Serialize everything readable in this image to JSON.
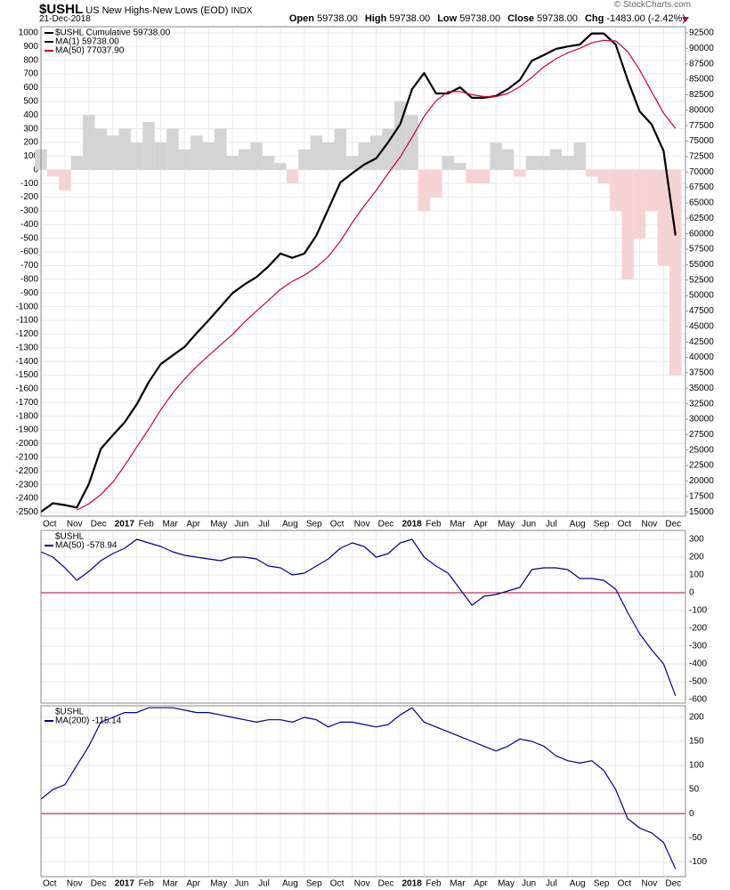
{
  "header": {
    "symbol": "$USHL",
    "name": "US New Highs-New Lows (EOD)",
    "exchange": "INDX",
    "date": "21-Dec-2018",
    "source": "© StockCharts.com",
    "quote": [
      {
        "label": "Open",
        "value": "59738.00"
      },
      {
        "label": "High",
        "value": "59738.00"
      },
      {
        "label": "Low",
        "value": "59738.00"
      },
      {
        "label": "Close",
        "value": "59738.00"
      },
      {
        "label": "Chg",
        "value": "-1483.00 (-2.42%)"
      }
    ]
  },
  "chart_data": [
    {
      "type": "line",
      "label": "$USHL Cumulative 59738.00",
      "label_color": "#000000",
      "categories": [
        "Oct",
        null,
        "Nov",
        null,
        "Dec",
        null,
        "2017",
        null,
        "Feb",
        null,
        "Mar",
        null,
        "Apr",
        null,
        "May",
        null,
        "Jun",
        null,
        "Jul",
        null,
        "Aug",
        null,
        "Sep",
        null,
        "Oct",
        null,
        "Nov",
        null,
        "Dec",
        null,
        "2018",
        null,
        "Feb",
        null,
        "Mar",
        null,
        "Apr",
        null,
        "May",
        null,
        "Jun",
        null,
        "Jul",
        null,
        "Aug",
        null,
        "Sep",
        null,
        "Oct",
        null,
        "Nov",
        null,
        "Dec",
        null
      ],
      "area_values": [
        150,
        -50,
        -150,
        100,
        400,
        300,
        250,
        300,
        200,
        350,
        200,
        300,
        150,
        250,
        200,
        300,
        100,
        150,
        200,
        100,
        50,
        -100,
        150,
        250,
        200,
        300,
        100,
        200,
        250,
        300,
        500,
        400,
        -300,
        -200,
        100,
        50,
        -100,
        -100,
        200,
        150,
        -50,
        100,
        100,
        150,
        100,
        200,
        -50,
        -100,
        -300,
        -800,
        -500,
        -300,
        -700,
        -1500
      ],
      "area_colors": {
        "positive": "#d4d4d4",
        "negative": "#f7d2d2"
      },
      "series": [
        {
          "name": "MA(1) 59738.00",
          "color": "#000000",
          "axis": "y2",
          "values": [
            15000,
            16400,
            16100,
            15700,
            19500,
            25200,
            27400,
            29500,
            32400,
            36000,
            38900,
            40300,
            41700,
            43900,
            46000,
            48200,
            50400,
            51800,
            53000,
            54700,
            56800,
            56100,
            56800,
            59700,
            64000,
            68300,
            69800,
            71200,
            72200,
            74800,
            77700,
            83400,
            86000,
            82700,
            82700,
            83700,
            82000,
            82000,
            82300,
            83400,
            84900,
            88000,
            88900,
            89900,
            90300,
            90600,
            92400,
            92400,
            90600,
            84900,
            79800,
            77700,
            73400,
            59738
          ]
        },
        {
          "name": "MA(50) 77037.90",
          "color": "#cc0033",
          "axis": "y2",
          "values": [
            null,
            null,
            null,
            15300,
            16300,
            17800,
            19800,
            22500,
            25500,
            28400,
            31500,
            34200,
            36500,
            38500,
            40300,
            42000,
            43700,
            45700,
            47500,
            49200,
            51000,
            52300,
            53300,
            54600,
            56300,
            58800,
            61800,
            64500,
            67000,
            69800,
            72400,
            75600,
            79000,
            81500,
            83000,
            83000,
            82500,
            82200,
            82200,
            82700,
            83800,
            85300,
            87000,
            88300,
            89300,
            90000,
            90900,
            91300,
            91200,
            89500,
            86500,
            83000,
            79500,
            77037.9
          ]
        }
      ],
      "ylim": [
        -2530,
        1045
      ],
      "yticks": [
        1000,
        900,
        800,
        700,
        600,
        500,
        400,
        300,
        200,
        100,
        0,
        -100,
        -200,
        -300,
        -400,
        -500,
        -600,
        -700,
        -800,
        -900,
        -1000,
        -1100,
        -1200,
        -1300,
        -1400,
        -1500,
        -1600,
        -1700,
        -1800,
        -1900,
        -2000,
        -2100,
        -2200,
        -2300,
        -2400,
        -2500
      ],
      "y2lim": [
        14300,
        93500
      ],
      "y2ticks": [
        92500,
        90000,
        87500,
        85000,
        82500,
        80000,
        77500,
        75000,
        72500,
        70000,
        67500,
        65000,
        62500,
        60000,
        57500,
        55000,
        52500,
        50000,
        47500,
        45000,
        42500,
        40000,
        37500,
        35000,
        32500,
        30000,
        27500,
        25000,
        22500,
        20000,
        17500,
        15000
      ],
      "ytick_side": "left",
      "grid": true
    },
    {
      "type": "line",
      "label": "$USHL",
      "label_color": "#000000",
      "series": [
        {
          "name": "MA(50) -578.94",
          "color": "#00008b",
          "values": [
            230,
            200,
            140,
            70,
            120,
            180,
            220,
            250,
            300,
            280,
            260,
            230,
            210,
            200,
            190,
            180,
            200,
            200,
            190,
            150,
            140,
            100,
            110,
            150,
            190,
            250,
            280,
            260,
            200,
            220,
            280,
            300,
            200,
            150,
            110,
            20,
            -70,
            -20,
            -10,
            10,
            30,
            130,
            140,
            140,
            130,
            80,
            80,
            70,
            20,
            -110,
            -230,
            -320,
            -400,
            -578.94
          ]
        }
      ],
      "ylim": [
        -620,
        350
      ],
      "yticks": [
        300,
        200,
        100,
        0,
        -100,
        -200,
        -300,
        -400,
        -500,
        -600
      ],
      "ytick_side": "right",
      "grid": true,
      "reference_line": {
        "value": 0,
        "color": "#b0003a"
      }
    },
    {
      "type": "line",
      "label": "$USHL",
      "label_color": "#000000",
      "categories": [
        "Oct",
        null,
        "Nov",
        null,
        "Dec",
        null,
        "2017",
        null,
        "Feb",
        null,
        "Mar",
        null,
        "Apr",
        null,
        "May",
        null,
        "Jun",
        null,
        "Jul",
        null,
        "Aug",
        null,
        "Sep",
        null,
        "Oct",
        null,
        "Nov",
        null,
        "Dec",
        null,
        "2018",
        null,
        "Feb",
        null,
        "Mar",
        null,
        "Apr",
        null,
        "May",
        null,
        "Jun",
        null,
        "Jul",
        null,
        "Aug",
        null,
        "Sep",
        null,
        "Oct",
        null,
        "Nov",
        null,
        "Dec",
        null
      ],
      "series": [
        {
          "name": "MA(200) -115.14",
          "color": "#00008b",
          "values": [
            30,
            50,
            60,
            100,
            140,
            190,
            200,
            210,
            210,
            220,
            220,
            220,
            215,
            210,
            210,
            205,
            200,
            195,
            190,
            195,
            195,
            190,
            200,
            195,
            180,
            190,
            190,
            185,
            180,
            185,
            205,
            220,
            190,
            180,
            170,
            160,
            150,
            140,
            130,
            140,
            155,
            150,
            140,
            120,
            110,
            105,
            110,
            90,
            50,
            -10,
            -30,
            -40,
            -60,
            -115.14
          ]
        }
      ],
      "ylim": [
        -131,
        224
      ],
      "yticks": [
        200,
        150,
        100,
        50,
        0,
        -50,
        -100
      ],
      "ytick_side": "right",
      "grid": true,
      "reference_line": {
        "value": 0,
        "color": "#b0003a"
      }
    }
  ]
}
